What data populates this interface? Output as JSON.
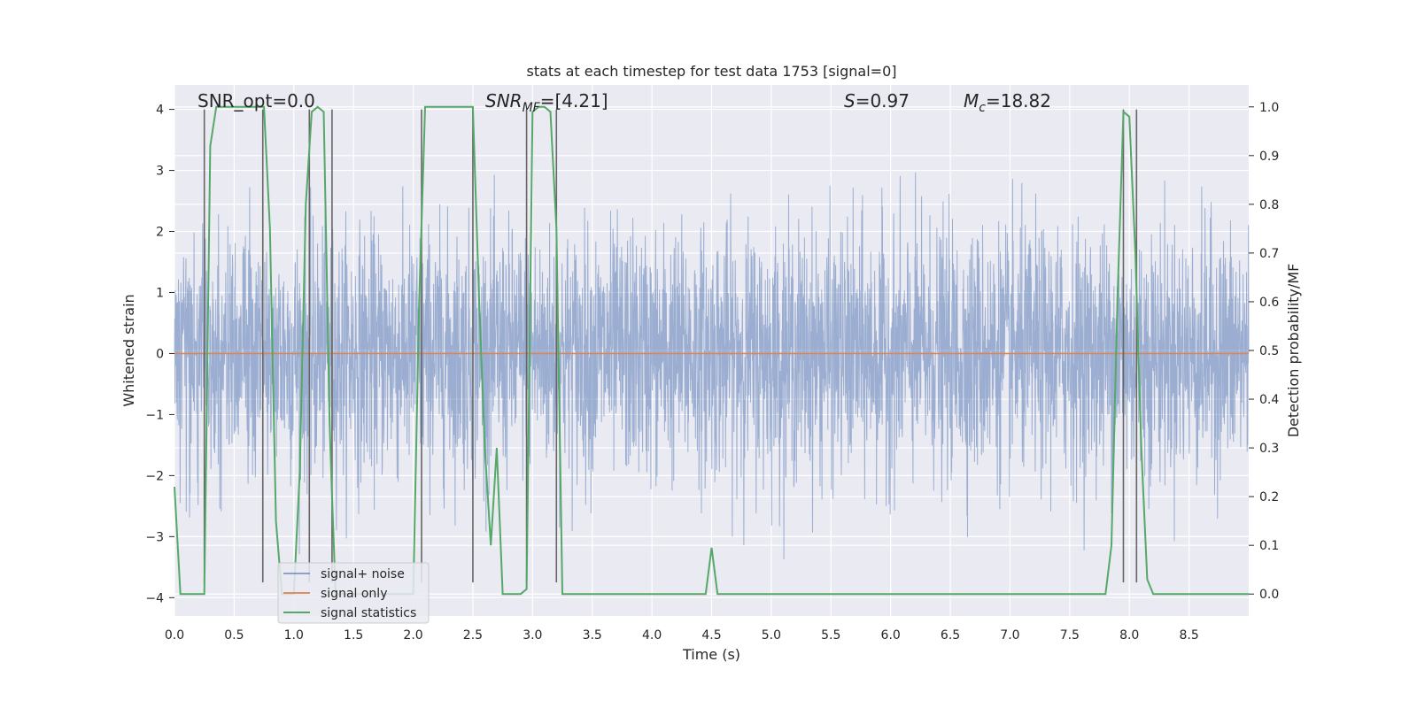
{
  "chart_data": {
    "type": "line",
    "title": "stats at each timestep for test data 1753 [signal=0]",
    "xlabel": "Time (s)",
    "ylabel": "Whitened strain",
    "y2label": "Detection probability/MF",
    "xlim": [
      0,
      9.0
    ],
    "ylim": [
      -4.3,
      4.4
    ],
    "y2lim": [
      -0.045,
      1.045
    ],
    "xticks": [
      "0.0",
      "0.5",
      "1.0",
      "1.5",
      "2.0",
      "2.5",
      "3.0",
      "3.5",
      "4.0",
      "4.5",
      "5.0",
      "5.5",
      "6.0",
      "6.5",
      "7.0",
      "7.5",
      "8.0",
      "8.5"
    ],
    "xtick_values": [
      0,
      0.5,
      1,
      1.5,
      2,
      2.5,
      3,
      3.5,
      4,
      4.5,
      5,
      5.5,
      6,
      6.5,
      7,
      7.5,
      8,
      8.5
    ],
    "yticks": [
      "4",
      "3",
      "2",
      "1",
      "0",
      "−1",
      "−2",
      "−3",
      "−4"
    ],
    "ytick_values": [
      4,
      3,
      2,
      1,
      0,
      -1,
      -2,
      -3,
      -4
    ],
    "y2ticks": [
      "1.0",
      "0.9",
      "0.8",
      "0.7",
      "0.6",
      "0.5",
      "0.4",
      "0.3",
      "0.2",
      "0.1",
      "0.0"
    ],
    "y2tick_values": [
      1.0,
      0.9,
      0.8,
      0.7,
      0.6,
      0.5,
      0.4,
      0.3,
      0.2,
      0.1,
      0.0
    ],
    "grid": true,
    "legend_placement": "lower-left",
    "annotations": {
      "snr_opt": "SNR_opt=0.0",
      "snr_mf_base": "SNR",
      "snr_mf_sub": "MF",
      "snr_mf_value": "=[4.21]",
      "s_sym": "S",
      "s_value": "=0.97",
      "mc_base": "M",
      "mc_sub": "c",
      "mc_value": "=18.82"
    },
    "series": [
      {
        "name": "signal+ noise",
        "color": "#4c72b0",
        "noise_envelope": {
          "x": [
            0,
            0.25,
            0.5,
            0.75,
            1.0,
            1.25,
            1.5,
            1.75,
            2.0,
            2.25,
            2.5,
            2.75,
            3.0,
            3.25,
            3.5,
            4.0,
            4.5,
            5.0,
            5.5,
            6.0,
            6.5,
            7.0,
            7.5,
            8.0,
            8.5,
            9.0
          ],
          "max": [
            3.0,
            2.8,
            3.4,
            3.0,
            3.0,
            3.2,
            2.8,
            3.0,
            2.6,
            3.3,
            3.0,
            2.9,
            3.4,
            3.1,
            2.9,
            3.2,
            3.6,
            3.0,
            3.3,
            3.1,
            3.2,
            3.4,
            3.5,
            4.0,
            3.1,
            3.4
          ],
          "min": [
            -2.3,
            -3.1,
            -2.9,
            -3.0,
            -3.4,
            -2.8,
            -3.1,
            -2.6,
            -3.0,
            -2.9,
            -2.7,
            -3.2,
            -2.9,
            -3.4,
            -2.8,
            -3.0,
            -3.1,
            -3.5,
            -2.9,
            -3.6,
            -3.0,
            -3.1,
            -3.2,
            -3.3,
            -3.0,
            -2.5
          ]
        }
      },
      {
        "name": "signal only",
        "color": "#dd8452",
        "x": [
          0,
          9.0
        ],
        "y": [
          0,
          0
        ]
      },
      {
        "name": "signal statistics",
        "color": "#55a868",
        "axis": "right",
        "x": [
          0.0,
          0.05,
          0.1,
          0.15,
          0.2,
          0.25,
          0.3,
          0.35,
          0.4,
          0.45,
          0.5,
          0.55,
          0.6,
          0.65,
          0.7,
          0.75,
          0.8,
          0.85,
          0.9,
          0.95,
          1.0,
          1.05,
          1.1,
          1.15,
          1.2,
          1.25,
          1.3,
          1.32,
          1.35,
          1.4,
          1.45,
          1.5,
          1.6,
          1.7,
          1.8,
          1.9,
          2.0,
          2.05,
          2.1,
          2.15,
          2.2,
          2.3,
          2.4,
          2.5,
          2.55,
          2.6,
          2.65,
          2.7,
          2.75,
          2.8,
          2.85,
          2.9,
          2.95,
          3.0,
          3.05,
          3.1,
          3.15,
          3.2,
          3.25,
          3.3,
          3.35,
          3.4,
          3.5,
          4.0,
          4.4,
          4.45,
          4.5,
          4.55,
          4.6,
          5.0,
          5.8,
          5.9,
          6.0,
          7.0,
          7.8,
          7.85,
          7.9,
          7.95,
          8.0,
          8.05,
          8.1,
          8.15,
          8.2,
          8.25,
          8.3,
          8.5,
          9.0
        ],
        "y": [
          0.22,
          0.0,
          0.0,
          0.0,
          0.0,
          0.0,
          0.92,
          1.0,
          1.0,
          1.0,
          1.0,
          1.0,
          1.0,
          1.0,
          1.0,
          1.0,
          0.75,
          0.15,
          0.0,
          0.0,
          0.0,
          0.25,
          0.8,
          0.99,
          1.0,
          0.99,
          0.35,
          0.2,
          0.0,
          0.0,
          0.0,
          0.0,
          0.0,
          0.0,
          0.0,
          0.0,
          0.0,
          0.6,
          1.0,
          1.0,
          1.0,
          1.0,
          1.0,
          1.0,
          0.62,
          0.3,
          0.1,
          0.3,
          0.0,
          0.0,
          0.0,
          0.0,
          0.01,
          0.99,
          1.0,
          1.0,
          0.99,
          0.75,
          0.0,
          0.0,
          0.0,
          0.0,
          0.0,
          0.0,
          0.0,
          0.0,
          0.095,
          0.0,
          0.0,
          0.0,
          0.0,
          0.0,
          0.0,
          0.0,
          0.0,
          0.1,
          0.6,
          0.99,
          0.98,
          0.7,
          0.3,
          0.03,
          0.0,
          0.0,
          0.0,
          0.0,
          0.0
        ]
      }
    ],
    "marker_lines": {
      "color": "#666666",
      "x": [
        0.25,
        0.74,
        1.13,
        1.32,
        2.07,
        2.5,
        2.95,
        3.2,
        7.95,
        8.06
      ]
    }
  }
}
